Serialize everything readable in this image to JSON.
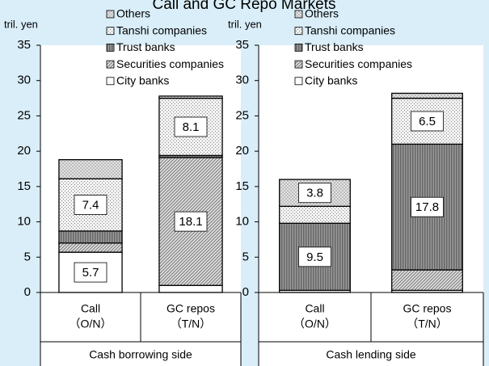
{
  "chart_data": [
    {
      "type": "stacked_bar",
      "title": "Call and GC Repo Markets",
      "ylabel": "tril. yen",
      "xlabel": "Cash borrowing side",
      "categories": [
        [
          "Call",
          "（O/N）"
        ],
        [
          "GC repos",
          "（T/N）"
        ]
      ],
      "ylim": [
        0,
        35
      ],
      "yticks": [
        0,
        5,
        10,
        15,
        20,
        25,
        30,
        35
      ],
      "series": [
        {
          "name": "City banks",
          "color": "#ffffff",
          "pattern": "none",
          "values": [
            5.7,
            1.0
          ]
        },
        {
          "name": "Securities companies",
          "color": "#c8c8c8",
          "pattern": "diagonal",
          "values": [
            1.3,
            18.1
          ]
        },
        {
          "name": "Trust banks",
          "color": "#808080",
          "pattern": "vertical",
          "values": [
            1.7,
            0.3
          ]
        },
        {
          "name": "Tanshi companies",
          "color": "#e4e4e4",
          "pattern": "dots",
          "values": [
            7.4,
            8.1
          ]
        },
        {
          "name": "Others",
          "color": "#d8d8d8",
          "pattern": "cross",
          "values": [
            2.7,
            0.3
          ]
        }
      ]
    },
    {
      "type": "stacked_bar",
      "ylabel": "tril. yen",
      "xlabel": "Cash lending side",
      "categories": [
        [
          "Call",
          "（O/N）"
        ],
        [
          "GC repos",
          "（T/N）"
        ]
      ],
      "ylim": [
        0,
        35
      ],
      "yticks": [
        0,
        5,
        10,
        15,
        20,
        25,
        30,
        35
      ],
      "series": [
        {
          "name": "City banks",
          "color": "#ffffff",
          "pattern": "none",
          "values": [
            0.3,
            0.3
          ]
        },
        {
          "name": "Securities companies",
          "color": "#c8c8c8",
          "pattern": "diagonal",
          "values": [
            0.0,
            2.9
          ]
        },
        {
          "name": "Trust banks",
          "color": "#808080",
          "pattern": "vertical",
          "values": [
            9.5,
            17.8
          ]
        },
        {
          "name": "Tanshi companies",
          "color": "#e4e4e4",
          "pattern": "dots",
          "values": [
            2.4,
            6.5
          ]
        },
        {
          "name": "Others",
          "color": "#d8d8d8",
          "pattern": "cross",
          "values": [
            3.8,
            0.7
          ]
        }
      ]
    }
  ]
}
